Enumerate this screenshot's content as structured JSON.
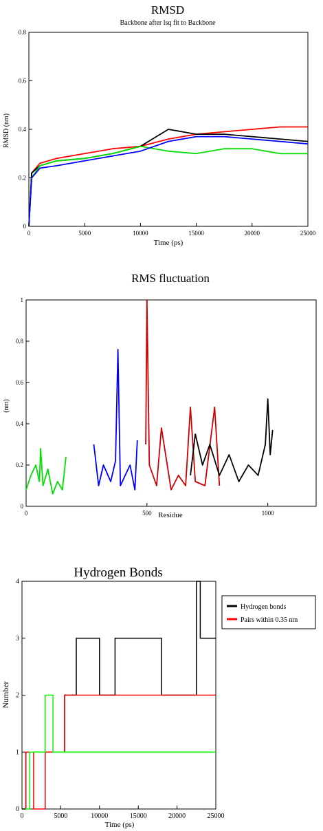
{
  "chart_data": [
    {
      "type": "line",
      "title": "RMSD",
      "subtitle": "Backbone after lsq fit to Backbone",
      "xlabel": "Time (ps)",
      "ylabel": "RMSD (nm)",
      "xlim": [
        0,
        25000
      ],
      "ylim": [
        0,
        0.8
      ],
      "xticks": [
        0,
        5000,
        10000,
        15000,
        20000,
        25000
      ],
      "yticks": [
        0,
        0.2,
        0.4,
        0.6,
        0.8
      ],
      "grid": false,
      "series": [
        {
          "color": "#ff0000",
          "x": [
            0,
            250,
            1000,
            2500,
            5000,
            7500,
            10000,
            12500,
            15000,
            17500,
            20000,
            22500,
            25000
          ],
          "y": [
            0,
            0.22,
            0.26,
            0.28,
            0.3,
            0.32,
            0.33,
            0.36,
            0.38,
            0.39,
            0.4,
            0.41,
            0.41
          ]
        },
        {
          "color": "#000000",
          "x": [
            0,
            250,
            1000,
            2500,
            5000,
            7500,
            10000,
            12500,
            15000,
            17500,
            20000,
            22500,
            25000
          ],
          "y": [
            0,
            0.22,
            0.25,
            0.27,
            0.28,
            0.3,
            0.33,
            0.4,
            0.38,
            0.38,
            0.37,
            0.36,
            0.35
          ]
        },
        {
          "color": "#00e000",
          "x": [
            0,
            250,
            1000,
            2500,
            5000,
            7500,
            10000,
            12500,
            15000,
            17500,
            20000,
            22500,
            25000
          ],
          "y": [
            0,
            0.2,
            0.25,
            0.27,
            0.28,
            0.3,
            0.33,
            0.31,
            0.3,
            0.32,
            0.32,
            0.3,
            0.3
          ]
        },
        {
          "color": "#0000ff",
          "x": [
            0,
            250,
            1000,
            2500,
            5000,
            7500,
            10000,
            12500,
            15000,
            17500,
            20000,
            22500,
            25000
          ],
          "y": [
            0,
            0.2,
            0.24,
            0.25,
            0.27,
            0.29,
            0.31,
            0.35,
            0.37,
            0.37,
            0.36,
            0.35,
            0.34
          ]
        }
      ]
    },
    {
      "type": "line",
      "title": "RMS fluctuation",
      "xlabel": "Residue",
      "ylabel": "(nm)",
      "xlim": [
        0,
        1200
      ],
      "ylim": [
        0,
        1
      ],
      "xticks": [
        0,
        500,
        1000
      ],
      "yticks": [
        0,
        0.2,
        0.4,
        0.6,
        0.8,
        1
      ],
      "ytick_labels": [
        "0",
        "0.2",
        "0.4",
        "0.6",
        "0.8",
        "1"
      ],
      "grid": false,
      "series": [
        {
          "color": "#00e000",
          "x": [
            0,
            20,
            40,
            55,
            60,
            70,
            90,
            110,
            130,
            150,
            165
          ],
          "y": [
            0.08,
            0.15,
            0.2,
            0.12,
            0.28,
            0.1,
            0.18,
            0.06,
            0.12,
            0.08,
            0.24
          ]
        },
        {
          "color": "#0000ff",
          "x": [
            280,
            300,
            320,
            350,
            370,
            380,
            390,
            410,
            430,
            450,
            460
          ],
          "y": [
            0.3,
            0.1,
            0.2,
            0.12,
            0.22,
            0.76,
            0.1,
            0.15,
            0.2,
            0.08,
            0.32
          ]
        },
        {
          "color": "#cc0000",
          "x": [
            495,
            500,
            510,
            540,
            560,
            600,
            630,
            660,
            680,
            700,
            740,
            780,
            800
          ],
          "y": [
            0.3,
            1.0,
            0.2,
            0.1,
            0.38,
            0.08,
            0.15,
            0.1,
            0.48,
            0.12,
            0.1,
            0.48,
            0.1
          ]
        },
        {
          "color": "#000000",
          "x": [
            680,
            700,
            730,
            760,
            800,
            840,
            880,
            920,
            960,
            990,
            1000,
            1010,
            1020
          ],
          "y": [
            0.15,
            0.35,
            0.2,
            0.3,
            0.15,
            0.25,
            0.12,
            0.2,
            0.15,
            0.3,
            0.52,
            0.25,
            0.37
          ]
        }
      ]
    },
    {
      "type": "line",
      "title": "Hydrogen Bonds",
      "xlabel": "Time (ps)",
      "ylabel": "Number",
      "xlim": [
        0,
        25000
      ],
      "ylim": [
        0,
        4
      ],
      "xticks": [
        0,
        5000,
        10000,
        15000,
        20000,
        25000
      ],
      "yticks": [
        0,
        1,
        2,
        3,
        4
      ],
      "grid": false,
      "legend_position": "right",
      "series": [
        {
          "name": "Hydrogen bonds",
          "color": "#000000",
          "x": [
            0,
            500,
            1500,
            3000,
            5500,
            7000,
            8500,
            9500,
            10000,
            12000,
            15000,
            18000,
            20000,
            22500,
            23000,
            24000,
            25000
          ],
          "y": [
            0,
            1,
            1,
            1,
            2,
            3,
            3,
            3,
            2,
            3,
            3,
            2,
            2,
            4,
            3,
            3,
            3
          ]
        },
        {
          "name": "Pairs within 0.35 nm",
          "color": "#ff0000",
          "x": [
            0,
            500,
            1500,
            3000,
            5500,
            7000,
            8500,
            10000,
            12000,
            15000,
            18000,
            20000,
            22000,
            24000,
            25000
          ],
          "y": [
            0,
            1,
            0,
            1,
            2,
            2,
            2,
            2,
            2,
            2,
            2,
            2,
            2,
            2,
            2
          ]
        },
        {
          "color": "#00ff00",
          "x": [
            0,
            1000,
            2000,
            3000,
            4000,
            5000,
            6000,
            8000,
            10000,
            13000,
            16000,
            19000,
            22000,
            25000
          ],
          "y": [
            0,
            1,
            1,
            2,
            1,
            1,
            1,
            1,
            1,
            1,
            1,
            1,
            1,
            1
          ]
        }
      ]
    }
  ]
}
